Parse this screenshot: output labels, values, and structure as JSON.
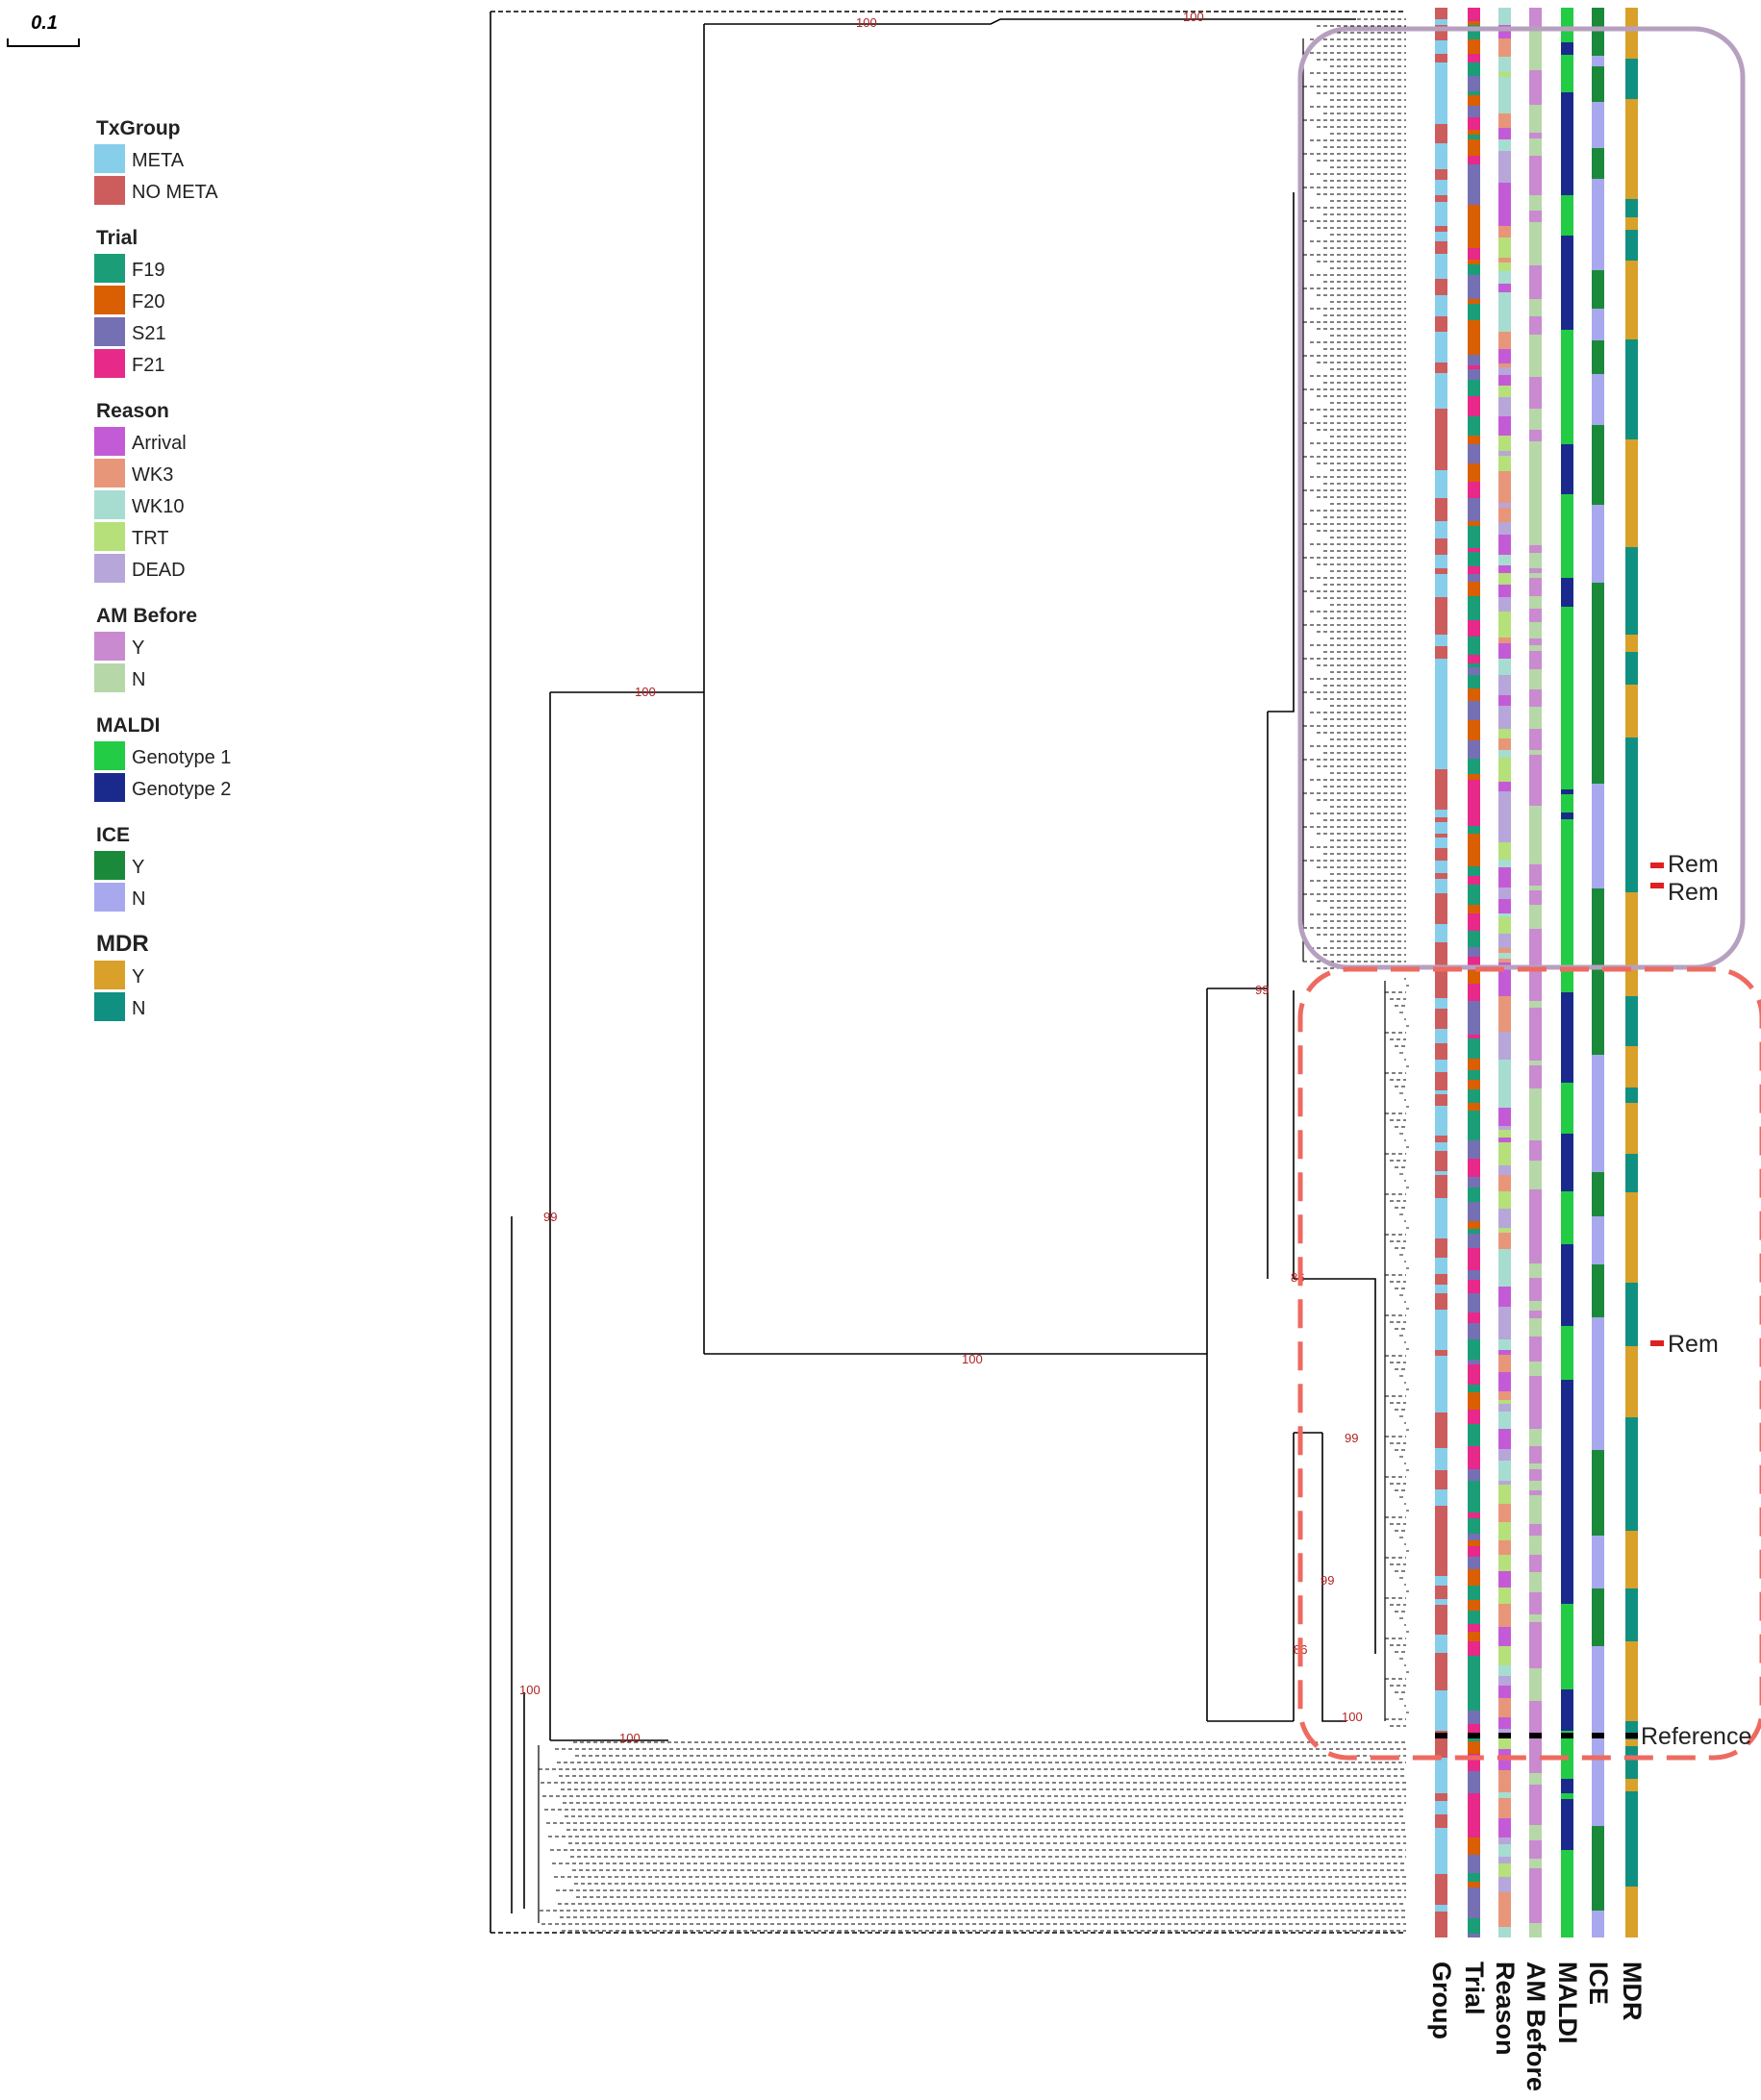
{
  "scale_bar": {
    "label": "0.1"
  },
  "legend": [
    {
      "title": "TxGroup",
      "items": [
        {
          "label": "META",
          "color": "#87CEEB"
        },
        {
          "label": "NO META",
          "color": "#CD5C5C"
        }
      ]
    },
    {
      "title": "Trial",
      "items": [
        {
          "label": "F19",
          "color": "#1B9E77"
        },
        {
          "label": "F20",
          "color": "#D95F02"
        },
        {
          "label": "S21",
          "color": "#7570B3"
        },
        {
          "label": "F21",
          "color": "#E7298A"
        }
      ]
    },
    {
      "title": "Reason",
      "items": [
        {
          "label": "Arrival",
          "color": "#C45BD6"
        },
        {
          "label": "WK3",
          "color": "#E8967A"
        },
        {
          "label": "WK10",
          "color": "#A6DDD0"
        },
        {
          "label": "TRT",
          "color": "#B5E07A"
        },
        {
          "label": "DEAD",
          "color": "#B7A6D9"
        }
      ]
    },
    {
      "title": "AM Before",
      "items": [
        {
          "label": "Y",
          "color": "#C98AD0"
        },
        {
          "label": "N",
          "color": "#B6D7A8"
        }
      ]
    },
    {
      "title": "MALDI",
      "items": [
        {
          "label": "Genotype 1",
          "color": "#22CC44"
        },
        {
          "label": "Genotype 2",
          "color": "#1A2A8C"
        }
      ]
    },
    {
      "title": "ICE",
      "items": [
        {
          "label": "Y",
          "color": "#1A8A3A"
        },
        {
          "label": "N",
          "color": "#A8A8EE"
        }
      ]
    },
    {
      "title": "MDR",
      "items": [
        {
          "label": "Y",
          "color": "#D9A02A"
        },
        {
          "label": "N",
          "color": "#109080"
        }
      ]
    }
  ],
  "annotation_columns": [
    "Group",
    "Trial",
    "Reason",
    "AM Before",
    "MALDI",
    "ICE",
    "MDR"
  ],
  "bootstrap_labels": [
    "100",
    "100",
    "100",
    "100",
    "99",
    "99",
    "86",
    "99",
    "99",
    "86",
    "100",
    "100",
    "100"
  ],
  "clade_notes": {
    "rem": "Rem",
    "reference": "Reference"
  },
  "colors": {
    "clade_box_solid": "#B7A0BF",
    "clade_box_dashed": "#EE6A60",
    "rem_marker": "#E02020",
    "tree": "#000000",
    "bootstrap": "#B22222"
  }
}
